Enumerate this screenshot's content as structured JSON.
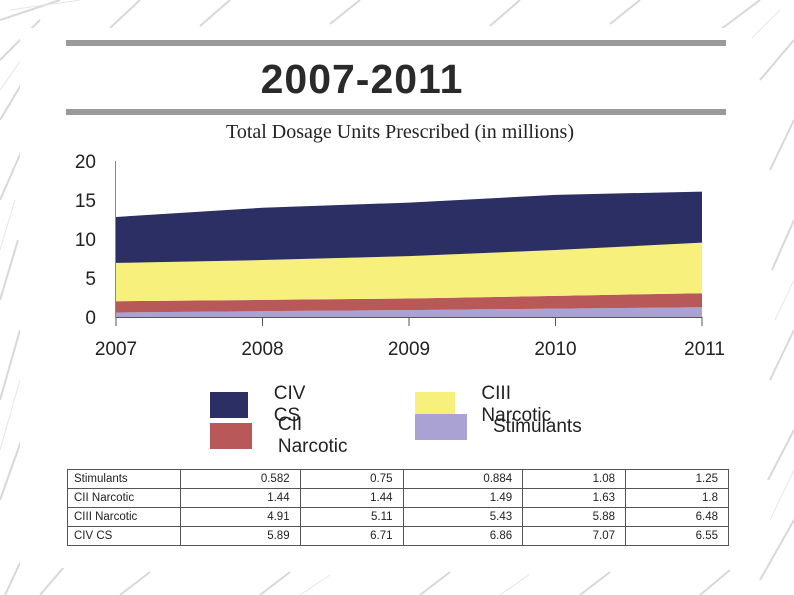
{
  "slide": {
    "title": "2007-2011"
  },
  "chart_data": {
    "type": "area",
    "stacked": true,
    "title": "Total Dosage Units Prescribed (in millions)",
    "x": [
      "2007",
      "2008",
      "2009",
      "2010",
      "2011"
    ],
    "ylim": [
      0,
      20
    ],
    "yticks": [
      "0",
      "5",
      "10",
      "15",
      "20"
    ],
    "xlabel": "",
    "ylabel": "",
    "grid": false,
    "series": [
      {
        "name": "Stimulants",
        "values": [
          0.582,
          0.75,
          0.884,
          1.08,
          1.25
        ],
        "color": "#a9a2d2"
      },
      {
        "name": "CII Narcotic",
        "values": [
          1.44,
          1.44,
          1.49,
          1.63,
          1.8
        ],
        "color": "#b85858"
      },
      {
        "name": "CIII Narcotic",
        "values": [
          4.91,
          5.11,
          5.43,
          5.88,
          6.48
        ],
        "color": "#f8f07c"
      },
      {
        "name": "CIV CS",
        "values": [
          5.89,
          6.71,
          6.86,
          7.07,
          6.55
        ],
        "color": "#2b2f63"
      }
    ],
    "legend": [
      {
        "name": "CIV CS",
        "color": "#2b2f63"
      },
      {
        "name": "CIII Narcotic",
        "color": "#f8f07c"
      },
      {
        "name": "CII Narcotic",
        "color": "#b85858"
      },
      {
        "name": "Stimulants",
        "color": "#a9a2d2"
      }
    ]
  },
  "table": {
    "rows": [
      {
        "name": "Stimulants",
        "values": [
          "0.582",
          "0.75",
          "0.884",
          "1.08",
          "1.25"
        ]
      },
      {
        "name": "CII Narcotic",
        "values": [
          "1.44",
          "1.44",
          "1.49",
          "1.63",
          "1.8"
        ]
      },
      {
        "name": "CIII Narcotic",
        "values": [
          "4.91",
          "5.11",
          "5.43",
          "5.88",
          "6.48"
        ]
      },
      {
        "name": "CIV CS",
        "values": [
          "5.89",
          "6.71",
          "6.86",
          "7.07",
          "6.55"
        ]
      }
    ]
  }
}
